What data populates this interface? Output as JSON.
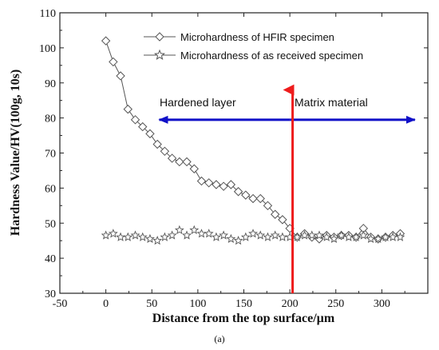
{
  "chart_data": {
    "type": "line",
    "xlabel": "Distance from the top surface/µm",
    "ylabel": "Hardness Value/HV(100g, 10s)",
    "xlim": [
      -50,
      350
    ],
    "ylim": [
      30,
      110
    ],
    "xticks": [
      "-50",
      "0",
      "50",
      "100",
      "150",
      "200",
      "250",
      "300"
    ],
    "yticks": [
      "30",
      "40",
      "50",
      "60",
      "70",
      "80",
      "90",
      "100",
      "110"
    ],
    "legend_position": "top-right",
    "series": [
      {
        "name": "Microhardness of HFIR specimen",
        "marker": "diamond",
        "connected": true,
        "color": "#555555",
        "x": [
          0,
          8,
          16,
          24,
          32,
          40,
          48,
          56,
          64,
          72,
          80,
          88,
          96,
          104,
          112,
          120,
          128,
          136,
          144,
          152,
          160,
          168,
          176,
          184,
          192,
          200,
          208,
          216,
          224,
          232,
          240,
          248,
          256,
          264,
          272,
          280,
          288,
          296,
          304,
          312,
          320
        ],
        "y": [
          102,
          96,
          92,
          82.5,
          79.5,
          77.5,
          75.5,
          72.5,
          70.5,
          68.5,
          67.5,
          67.5,
          65.5,
          62,
          61.5,
          61,
          60.5,
          61,
          59,
          58,
          57,
          57,
          55,
          52.5,
          51,
          48.5,
          46,
          47,
          46,
          45.5,
          46.5,
          46,
          46.5,
          46.5,
          46,
          48.5,
          46,
          45.5,
          46,
          46.5,
          47
        ]
      },
      {
        "name": "Microhardness of as received specimen",
        "marker": "star",
        "connected": false,
        "color": "#555555",
        "x": [
          0,
          8,
          16,
          24,
          32,
          40,
          48,
          56,
          64,
          72,
          80,
          88,
          96,
          104,
          112,
          120,
          128,
          136,
          144,
          152,
          160,
          168,
          176,
          184,
          192,
          200,
          208,
          216,
          224,
          232,
          240,
          248,
          256,
          264,
          272,
          280,
          288,
          296,
          304,
          312,
          320
        ],
        "y": [
          46.5,
          47,
          46,
          46,
          46.5,
          46,
          45.5,
          45,
          46,
          46.5,
          48,
          46.5,
          48,
          47,
          47,
          46,
          46.5,
          45.5,
          45,
          46,
          47,
          46.5,
          46,
          46.5,
          46,
          46,
          46,
          46.5,
          46.5,
          46.5,
          46,
          45.5,
          46.5,
          46,
          46,
          46.5,
          45.5,
          45.5,
          46,
          46,
          46
        ]
      }
    ],
    "annotations": [
      {
        "text": "Hardened layer",
        "x": 130,
        "y": 82
      },
      {
        "text": "Matrix material",
        "x": 262,
        "y": 82
      }
    ],
    "arrows": [
      {
        "name": "hardened-layer-arrow",
        "color": "#1010c8",
        "from": [
          200,
          79.5
        ],
        "to": [
          58,
          79.5
        ]
      },
      {
        "name": "matrix-material-arrow",
        "color": "#1010c8",
        "from": [
          200,
          79.5
        ],
        "to": [
          336,
          79.5
        ]
      },
      {
        "name": "boundary-arrow",
        "color": "#ee1c1c",
        "from": [
          203,
          30
        ],
        "to": [
          203,
          88
        ]
      }
    ]
  },
  "caption": "(a)"
}
